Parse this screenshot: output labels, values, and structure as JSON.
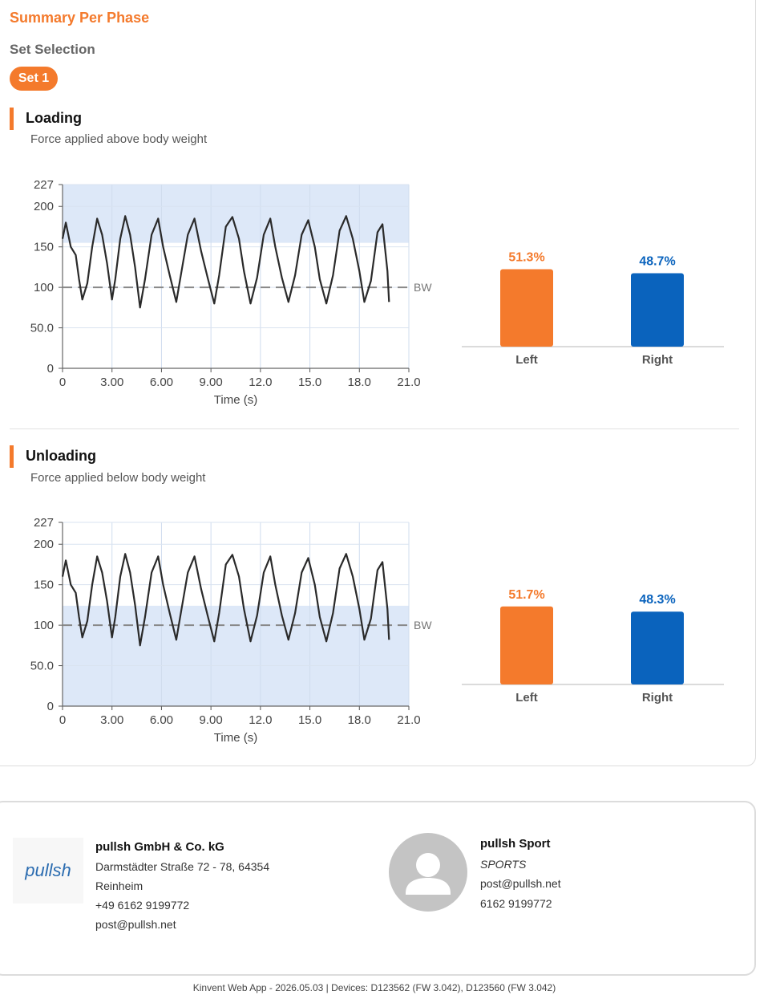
{
  "header": {
    "title": "Summary Per Phase",
    "set_selection_label": "Set Selection",
    "set_button": "Set 1"
  },
  "sections": [
    {
      "title": "Loading",
      "subtitle": "Force applied above body weight",
      "left_pct": "51.3%",
      "right_pct": "48.7%",
      "left_label": "Left",
      "right_label": "Right"
    },
    {
      "title": "Unloading",
      "subtitle": "Force applied below body weight",
      "left_pct": "51.7%",
      "right_pct": "48.3%",
      "left_label": "Left",
      "right_label": "Right"
    }
  ],
  "colors": {
    "accent": "#f47a2c",
    "left": "#f47a2c",
    "right": "#0a63bd",
    "band": "#dde8f8"
  },
  "chart_data": [
    {
      "type": "line",
      "title": "Loading",
      "xlabel": "Time (s)",
      "ylabel": "",
      "xlim": [
        0,
        21
      ],
      "ylim": [
        0,
        227
      ],
      "x_ticks": [
        "0",
        "3.00",
        "6.00",
        "9.00",
        "12.0",
        "15.0",
        "18.0",
        "21.0"
      ],
      "y_ticks": [
        "0",
        "50.0",
        "100",
        "150",
        "200",
        "227"
      ],
      "reference_line": {
        "label": "BW",
        "value": 100
      },
      "shaded_band": [
        155,
        227
      ],
      "series": [
        {
          "x": [
            0,
            0.2,
            0.5,
            0.8,
            1.0,
            1.2,
            1.5,
            1.8,
            2.1,
            2.4,
            2.7,
            3.0,
            3.2,
            3.5,
            3.8,
            4.1,
            4.4,
            4.7,
            5.0,
            5.4,
            5.8,
            6.1,
            6.5,
            6.9,
            7.2,
            7.6,
            8.0,
            8.4,
            8.8,
            9.2,
            9.5,
            9.9,
            10.3,
            10.7,
            11.0,
            11.4,
            11.8,
            12.2,
            12.6,
            12.9,
            13.3,
            13.7,
            14.1,
            14.5,
            14.9,
            15.3,
            15.6,
            16.0,
            16.4,
            16.8,
            17.2,
            17.6,
            18.0,
            18.3,
            18.7,
            19.1,
            19.4,
            19.7,
            19.8
          ],
          "values": [
            160,
            180,
            150,
            140,
            110,
            85,
            105,
            150,
            185,
            165,
            130,
            85,
            110,
            160,
            188,
            165,
            125,
            75,
            110,
            165,
            185,
            150,
            115,
            82,
            118,
            165,
            185,
            145,
            112,
            80,
            115,
            175,
            187,
            160,
            120,
            80,
            112,
            165,
            185,
            150,
            112,
            82,
            115,
            165,
            183,
            150,
            110,
            80,
            115,
            170,
            188,
            160,
            120,
            82,
            108,
            168,
            178,
            120,
            82
          ]
        }
      ],
      "left_pct": 51.3,
      "right_pct": 48.7
    },
    {
      "type": "line",
      "title": "Unloading",
      "xlabel": "Time (s)",
      "ylabel": "",
      "xlim": [
        0,
        21
      ],
      "ylim": [
        0,
        227
      ],
      "x_ticks": [
        "0",
        "3.00",
        "6.00",
        "9.00",
        "12.0",
        "15.0",
        "18.0",
        "21.0"
      ],
      "y_ticks": [
        "0",
        "50.0",
        "100",
        "150",
        "200",
        "227"
      ],
      "reference_line": {
        "label": "BW",
        "value": 100
      },
      "shaded_band": [
        0,
        124
      ],
      "series": [
        {
          "x": [
            0,
            0.2,
            0.5,
            0.8,
            1.0,
            1.2,
            1.5,
            1.8,
            2.1,
            2.4,
            2.7,
            3.0,
            3.2,
            3.5,
            3.8,
            4.1,
            4.4,
            4.7,
            5.0,
            5.4,
            5.8,
            6.1,
            6.5,
            6.9,
            7.2,
            7.6,
            8.0,
            8.4,
            8.8,
            9.2,
            9.5,
            9.9,
            10.3,
            10.7,
            11.0,
            11.4,
            11.8,
            12.2,
            12.6,
            12.9,
            13.3,
            13.7,
            14.1,
            14.5,
            14.9,
            15.3,
            15.6,
            16.0,
            16.4,
            16.8,
            17.2,
            17.6,
            18.0,
            18.3,
            18.7,
            19.1,
            19.4,
            19.7,
            19.8
          ],
          "values": [
            160,
            180,
            150,
            140,
            110,
            85,
            105,
            150,
            185,
            165,
            130,
            85,
            110,
            160,
            188,
            165,
            125,
            75,
            110,
            165,
            185,
            150,
            115,
            82,
            118,
            165,
            185,
            145,
            112,
            80,
            115,
            175,
            187,
            160,
            120,
            80,
            112,
            165,
            185,
            150,
            112,
            82,
            115,
            165,
            183,
            150,
            110,
            80,
            115,
            170,
            188,
            160,
            120,
            82,
            108,
            168,
            178,
            120,
            82
          ]
        }
      ],
      "left_pct": 51.7,
      "right_pct": 48.3
    }
  ],
  "company": {
    "name": "pullsh GmbH & Co. kG",
    "address1": "Darmstädter Straße 72 - 78, 64354",
    "address2": "Reinheim",
    "phone": "+49 6162 9199772",
    "email": "post@pullsh.net",
    "logo_text": "pullsh"
  },
  "contact": {
    "name": "pullsh Sport",
    "category": "SPORTS",
    "email": "post@pullsh.net",
    "phone": "6162 9199772"
  },
  "footer": {
    "text": "Kinvent Web App - 2026.05.03 | Devices: D123562 (FW 3.042), D123560 (FW 3.042)"
  }
}
